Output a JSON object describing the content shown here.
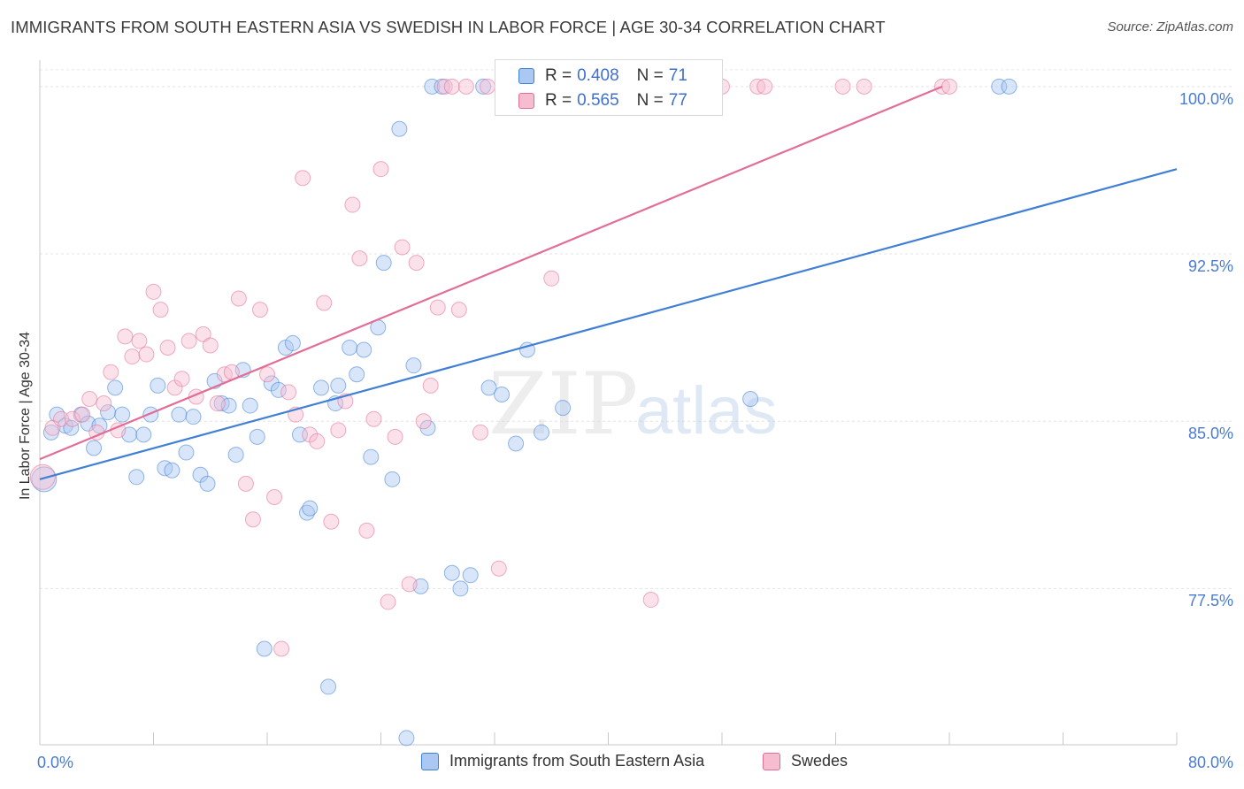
{
  "title": "IMMIGRANTS FROM SOUTH EASTERN ASIA VS SWEDISH IN LABOR FORCE | AGE 30-34 CORRELATION CHART",
  "source": "Source: ZipAtlas.com",
  "watermark": {
    "zip": "ZIP",
    "atlas": "atlas"
  },
  "colors": {
    "blue": "#3f7fd6",
    "blue_fill": "#aac8f1",
    "pink": "#e26e98",
    "pink_fill": "#f6bcd0",
    "tick_label": "#4a7bd0"
  },
  "legend_top": {
    "rows": [
      {
        "r_label": "R = ",
        "r_value": "0.408",
        "n_label": "N = ",
        "n_value": "71"
      },
      {
        "r_label": "R = ",
        "r_value": "0.565",
        "n_label": "N = ",
        "n_value": "77"
      }
    ]
  },
  "chart_data": {
    "type": "scatter",
    "title": "IMMIGRANTS FROM SOUTH EASTERN ASIA VS SWEDISH IN LABOR FORCE | AGE 30-34 CORRELATION CHART",
    "xlabel": "",
    "ylabel": "In Labor Force | Age 30-34",
    "xlim": [
      0,
      80
    ],
    "ylim": [
      70.5,
      101.5
    ],
    "x_tick_labels": [
      "0.0%",
      "80.0%"
    ],
    "y_ticks": [
      77.5,
      85.0,
      92.5,
      100.0
    ],
    "y_tick_labels": [
      "77.5%",
      "85.0%",
      "92.5%",
      "100.0%"
    ],
    "grid": true,
    "legend_position": "top-center",
    "series": [
      {
        "name": "Immigrants from South Eastern Asia",
        "color": "#3f7fd6",
        "r": 0.408,
        "n": 71,
        "trend": {
          "x": [
            0,
            80
          ],
          "y": [
            82.4,
            96.3
          ]
        },
        "points": [
          [
            0.3,
            82.4
          ],
          [
            0.8,
            84.5
          ],
          [
            1.2,
            85.3
          ],
          [
            1.8,
            84.8
          ],
          [
            2.2,
            84.7
          ],
          [
            2.9,
            85.3
          ],
          [
            3.4,
            84.9
          ],
          [
            3.8,
            83.8
          ],
          [
            4.2,
            84.8
          ],
          [
            4.8,
            85.4
          ],
          [
            5.3,
            86.5
          ],
          [
            5.8,
            85.3
          ],
          [
            6.3,
            84.4
          ],
          [
            6.8,
            82.5
          ],
          [
            7.3,
            84.4
          ],
          [
            7.8,
            85.3
          ],
          [
            8.3,
            86.6
          ],
          [
            8.8,
            82.9
          ],
          [
            9.3,
            82.8
          ],
          [
            9.8,
            85.3
          ],
          [
            10.3,
            83.6
          ],
          [
            10.8,
            85.2
          ],
          [
            11.3,
            82.6
          ],
          [
            11.8,
            82.2
          ],
          [
            12.3,
            86.8
          ],
          [
            12.8,
            85.8
          ],
          [
            13.3,
            85.7
          ],
          [
            13.8,
            83.5
          ],
          [
            14.3,
            87.3
          ],
          [
            14.8,
            85.7
          ],
          [
            15.3,
            84.3
          ],
          [
            15.8,
            74.8
          ],
          [
            16.3,
            86.7
          ],
          [
            16.8,
            86.4
          ],
          [
            17.3,
            88.3
          ],
          [
            17.8,
            88.5
          ],
          [
            18.3,
            84.4
          ],
          [
            18.8,
            80.9
          ],
          [
            19.0,
            81.1
          ],
          [
            19.8,
            86.5
          ],
          [
            20.3,
            73.1
          ],
          [
            20.8,
            85.8
          ],
          [
            21.0,
            86.6
          ],
          [
            21.8,
            88.3
          ],
          [
            22.3,
            87.1
          ],
          [
            22.8,
            88.2
          ],
          [
            23.3,
            83.4
          ],
          [
            23.8,
            89.2
          ],
          [
            24.2,
            92.1
          ],
          [
            24.8,
            82.4
          ],
          [
            25.3,
            98.1
          ],
          [
            25.8,
            70.8
          ],
          [
            26.3,
            87.5
          ],
          [
            26.8,
            77.6
          ],
          [
            27.3,
            84.7
          ],
          [
            27.6,
            100.0
          ],
          [
            28.3,
            100.0
          ],
          [
            29.0,
            78.2
          ],
          [
            29.6,
            77.5
          ],
          [
            30.3,
            78.1
          ],
          [
            31.2,
            100.0
          ],
          [
            31.6,
            86.5
          ],
          [
            32.5,
            86.2
          ],
          [
            33.5,
            84.0
          ],
          [
            34.3,
            88.2
          ],
          [
            35.3,
            84.5
          ],
          [
            36.8,
            85.6
          ],
          [
            41.0,
            100.0
          ],
          [
            50.0,
            86.0
          ],
          [
            67.5,
            100.0
          ],
          [
            68.2,
            100.0
          ]
        ]
      },
      {
        "name": "Swedes",
        "color": "#e26e98",
        "r": 0.565,
        "n": 77,
        "trend": {
          "x": [
            0,
            63.5
          ],
          "y": [
            83.3,
            100.0
          ]
        },
        "points": [
          [
            0.2,
            82.5
          ],
          [
            0.9,
            84.7
          ],
          [
            1.5,
            85.1
          ],
          [
            2.3,
            85.1
          ],
          [
            3.0,
            85.3
          ],
          [
            3.5,
            86.0
          ],
          [
            4.0,
            84.5
          ],
          [
            4.5,
            85.8
          ],
          [
            5.0,
            87.2
          ],
          [
            5.5,
            84.6
          ],
          [
            6.0,
            88.8
          ],
          [
            6.5,
            87.9
          ],
          [
            7.0,
            88.6
          ],
          [
            7.5,
            88.0
          ],
          [
            8.0,
            90.8
          ],
          [
            8.5,
            90.0
          ],
          [
            9.0,
            88.3
          ],
          [
            9.5,
            86.5
          ],
          [
            10.0,
            86.9
          ],
          [
            10.5,
            88.6
          ],
          [
            11.0,
            86.1
          ],
          [
            11.5,
            88.9
          ],
          [
            12.0,
            88.4
          ],
          [
            12.5,
            85.8
          ],
          [
            13.0,
            87.1
          ],
          [
            13.5,
            87.2
          ],
          [
            14.0,
            90.5
          ],
          [
            14.5,
            82.2
          ],
          [
            15.0,
            80.6
          ],
          [
            15.5,
            90.0
          ],
          [
            16.0,
            87.1
          ],
          [
            16.5,
            81.6
          ],
          [
            17.0,
            74.8
          ],
          [
            17.5,
            86.3
          ],
          [
            18.0,
            85.3
          ],
          [
            18.5,
            95.9
          ],
          [
            19.0,
            84.4
          ],
          [
            19.5,
            84.1
          ],
          [
            20.0,
            90.3
          ],
          [
            20.5,
            80.5
          ],
          [
            21.0,
            84.6
          ],
          [
            21.5,
            85.9
          ],
          [
            22.0,
            94.7
          ],
          [
            22.5,
            92.3
          ],
          [
            23.0,
            80.1
          ],
          [
            23.5,
            85.1
          ],
          [
            24.0,
            96.3
          ],
          [
            24.5,
            76.9
          ],
          [
            25.0,
            84.3
          ],
          [
            25.5,
            92.8
          ],
          [
            26.0,
            77.7
          ],
          [
            26.5,
            92.1
          ],
          [
            27.0,
            85.0
          ],
          [
            27.5,
            86.6
          ],
          [
            28.0,
            90.1
          ],
          [
            28.5,
            100.0
          ],
          [
            29.0,
            100.0
          ],
          [
            29.5,
            90.0
          ],
          [
            30.0,
            100.0
          ],
          [
            31.0,
            84.5
          ],
          [
            31.5,
            100.0
          ],
          [
            32.3,
            78.4
          ],
          [
            33.0,
            100.0
          ],
          [
            34.0,
            100.0
          ],
          [
            36.0,
            91.4
          ],
          [
            38.5,
            100.0
          ],
          [
            39.0,
            100.0
          ],
          [
            42.0,
            100.0
          ],
          [
            43.0,
            77.0
          ],
          [
            44.5,
            100.0
          ],
          [
            48.0,
            100.0
          ],
          [
            50.5,
            100.0
          ],
          [
            51.0,
            100.0
          ],
          [
            56.5,
            100.0
          ],
          [
            58.0,
            100.0
          ],
          [
            63.5,
            100.0
          ],
          [
            64.0,
            100.0
          ]
        ]
      }
    ]
  }
}
